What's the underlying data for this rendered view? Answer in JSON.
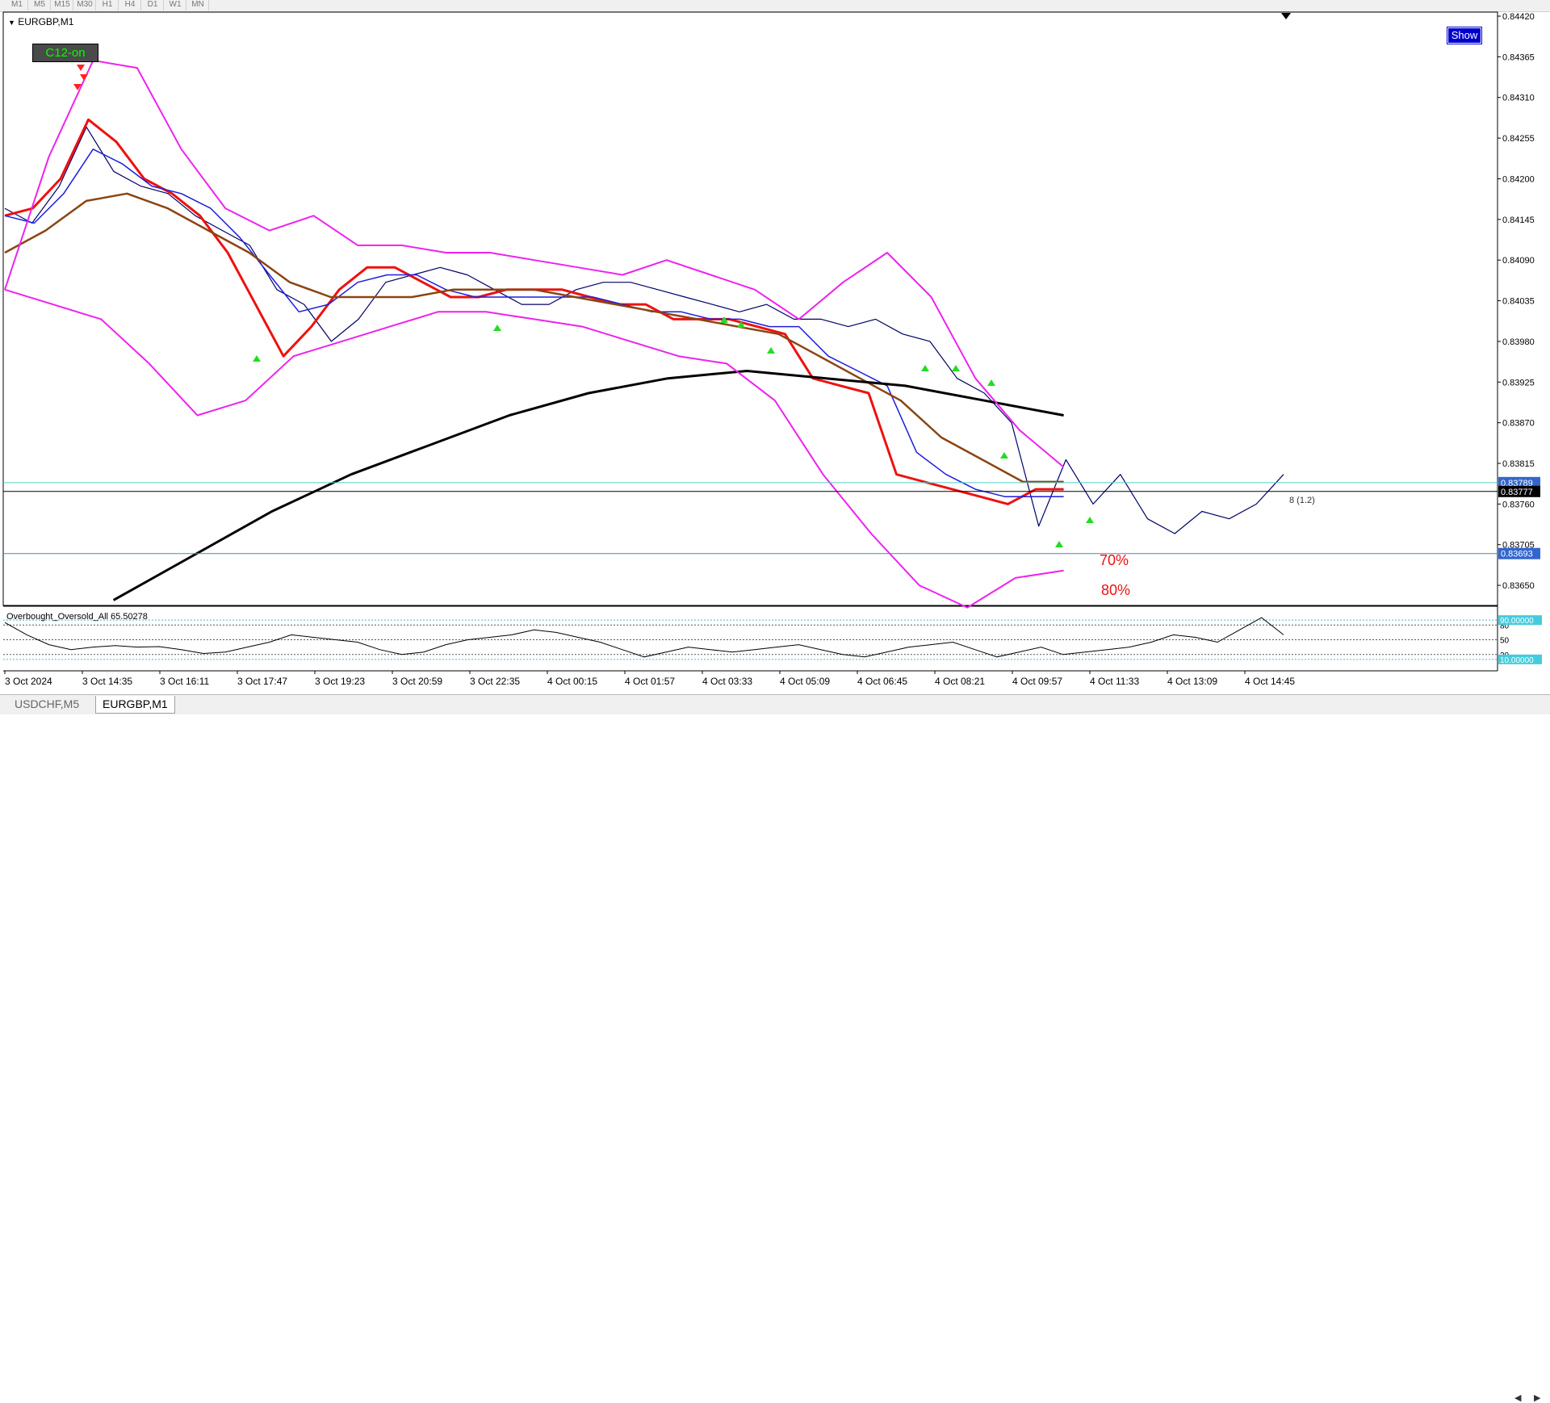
{
  "window": {
    "symbol_title": "EURGBP,M1",
    "indicator_button": "C12-on",
    "show_button": "Show",
    "collapse_arrow": "triangle-down-icon"
  },
  "toolbar": {
    "timeframes": [
      "M1",
      "M5",
      "M15",
      "M30",
      "H1",
      "H4",
      "D1",
      "W1",
      "MN"
    ]
  },
  "colors": {
    "background": "#ffffff",
    "price_line": "#000066",
    "ma_red": "#ee1111",
    "ma_blue": "#1d1ddd",
    "ma_brown": "#8b4513",
    "ma_long": "#000000",
    "bands_outer": "#ee22ee",
    "bands_inner": "#000000",
    "arrow_up": "#22dd22",
    "arrow_down": "#ff2222",
    "hline_teal": "#55cccc",
    "hline_blue": "#4488cc",
    "price_label_bg": "#3366cc"
  },
  "annotations": {
    "pct_70": "70%",
    "pct_80": "80%",
    "level_note": "8 (1.2)"
  },
  "chart_data": [
    {
      "type": "line",
      "title": "EURGBP,M1",
      "ylim": [
        0.83625,
        0.8442
      ],
      "y_ticks": [
        "0.84420",
        "0.84365",
        "0.84310",
        "0.84255",
        "0.84200",
        "0.84145",
        "0.84090",
        "0.84035",
        "0.83980",
        "0.83925",
        "0.83870",
        "0.83815",
        "0.83760",
        "0.83705",
        "0.83650"
      ],
      "x_ticks": [
        "3 Oct 2024",
        "3 Oct 14:35",
        "3 Oct 16:11",
        "3 Oct 17:47",
        "3 Oct 19:23",
        "3 Oct 20:59",
        "3 Oct 22:35",
        "4 Oct 00:15",
        "4 Oct 01:57",
        "4 Oct 03:33",
        "4 Oct 05:09",
        "4 Oct 06:45",
        "4 Oct 08:21",
        "4 Oct 09:57",
        "4 Oct 11:33",
        "4 Oct 13:09",
        "4 Oct 14:45"
      ],
      "price_labels": [
        "0.83789",
        "0.83777",
        "0.83693"
      ],
      "horizontal_lines": [
        0.83789,
        0.83777,
        0.83693
      ],
      "series": [
        {
          "values": [
            0.8416,
            0.8414,
            0.8419,
            0.8427,
            0.8421,
            0.8419,
            0.8418,
            0.8415,
            0.8413,
            0.8411,
            0.8405,
            0.8403,
            0.8398,
            0.8401,
            0.8406,
            0.8407,
            0.8408,
            0.8407,
            0.8405,
            0.8403,
            0.8403,
            0.8405,
            0.8406,
            0.8406,
            0.8405,
            0.8404,
            0.8403,
            0.8402,
            0.8403,
            0.8401,
            0.8401,
            0.84,
            0.8401,
            0.8399,
            0.8398,
            0.8393,
            0.8391,
            0.8387,
            0.8373,
            0.8382,
            0.8376,
            0.838,
            0.8374,
            0.8372,
            0.8375,
            0.8374,
            0.8376,
            0.838
          ]
        },
        {
          "values": [
            0.8415,
            0.8416,
            0.842,
            0.8428,
            0.8425,
            0.842,
            0.8418,
            0.8415,
            0.841,
            0.8403,
            0.8396,
            0.84,
            0.8405,
            0.8408,
            0.8408,
            0.8406,
            0.8404,
            0.8404,
            0.8405,
            0.8405,
            0.8405,
            0.8404,
            0.8403,
            0.8403,
            0.8401,
            0.8401,
            0.8401,
            0.84,
            0.8399,
            0.8393,
            0.8392,
            0.8391,
            0.838,
            0.8379,
            0.8378,
            0.8377,
            0.8376,
            0.8378,
            0.8378
          ]
        },
        {
          "values": [
            0.8415,
            0.8414,
            0.8418,
            0.8424,
            0.8422,
            0.8419,
            0.8418,
            0.8416,
            0.8412,
            0.8407,
            0.8402,
            0.8403,
            0.8406,
            0.8407,
            0.8407,
            0.8405,
            0.8404,
            0.8404,
            0.8404,
            0.8404,
            0.8404,
            0.8403,
            0.8402,
            0.8402,
            0.8401,
            0.8401,
            0.84,
            0.84,
            0.8396,
            0.8394,
            0.8392,
            0.8383,
            0.838,
            0.8378,
            0.8377,
            0.8377,
            0.8377
          ]
        },
        {
          "values": [
            0.841,
            0.8413,
            0.8417,
            0.8418,
            0.8416,
            0.8413,
            0.841,
            0.8406,
            0.8404,
            0.8404,
            0.8404,
            0.8405,
            0.8405,
            0.8405,
            0.8404,
            0.8403,
            0.8402,
            0.8401,
            0.84,
            0.8399,
            0.8396,
            0.8393,
            0.839,
            0.8385,
            0.8382,
            0.8379,
            0.8379
          ]
        },
        {
          "values": [
            0.8363,
            0.8369,
            0.8375,
            0.838,
            0.8384,
            0.8388,
            0.8391,
            0.8393,
            0.8394,
            0.8393,
            0.8392,
            0.839,
            0.8388
          ]
        },
        {
          "values": [
            0.8405,
            0.8423,
            0.8436,
            0.8435,
            0.8424,
            0.8416,
            0.8413,
            0.8415,
            0.8411,
            0.8411,
            0.841,
            0.841,
            0.8409,
            0.8408,
            0.8407,
            0.8409,
            0.8407,
            0.8405,
            0.8401,
            0.8406,
            0.841,
            0.8404,
            0.8393,
            0.8386,
            0.8381
          ]
        },
        {
          "values": [
            0.8405,
            0.8403,
            0.8401,
            0.8395,
            0.8388,
            0.839,
            0.8396,
            0.8398,
            0.84,
            0.8402,
            0.8402,
            0.8401,
            0.84,
            0.8398,
            0.8396,
            0.8395,
            0.839,
            0.838,
            0.8372,
            0.8365,
            0.8362,
            0.8366,
            0.8367
          ]
        }
      ]
    },
    {
      "type": "line",
      "title": "Overbought_Oversold_All",
      "indicator_value": "65.50278",
      "ylim": [
        -10,
        110
      ],
      "y_ticks": [
        "80",
        "50",
        "20"
      ],
      "level_labels": [
        "90.00000",
        "10.00000"
      ],
      "levels": [
        90,
        80,
        50,
        20,
        10
      ],
      "series": [
        {
          "values": [
            85,
            60,
            40,
            30,
            35,
            38,
            35,
            36,
            30,
            22,
            25,
            35,
            45,
            60,
            55,
            50,
            45,
            30,
            20,
            25,
            40,
            50,
            55,
            60,
            70,
            65,
            55,
            45,
            30,
            15,
            25,
            35,
            30,
            25,
            30,
            35,
            40,
            30,
            20,
            15,
            25,
            35,
            40,
            45,
            30,
            15,
            25,
            35,
            20,
            25,
            30,
            35,
            45,
            60,
            55,
            45,
            70,
            95,
            60
          ]
        }
      ]
    }
  ],
  "tabs": [
    {
      "label": "USDCHF,M5",
      "active": false
    },
    {
      "label": "EURGBP,M1",
      "active": true
    }
  ],
  "status": {
    "scroll_left_icon": "triangle-left-icon",
    "scroll_right_icon": "triangle-right-icon"
  }
}
